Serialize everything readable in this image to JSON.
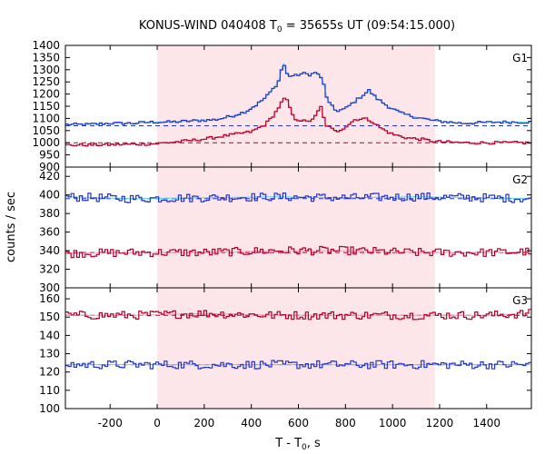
{
  "chart_data": {
    "type": "line",
    "title_main": "KONUS-WIND 040408 T",
    "title_sub": "0",
    "title_rest": " = 35655s UT (09:54:15.000)",
    "xlabel_main": "T - T",
    "xlabel_sub": "0",
    "xlabel_rest": ", s",
    "ylabel": "counts / sec",
    "xlim": [
      -390,
      1590
    ],
    "xticks": [
      -200,
      0,
      200,
      400,
      600,
      800,
      1000,
      1200,
      1400
    ],
    "shaded_interval": [
      0,
      1180
    ],
    "colors": {
      "blue": "#2535c8",
      "red": "#b3002a",
      "cyan": "#5fd3f0",
      "pink": "#f0a0c0",
      "shade": "#fde6ea"
    },
    "panels": [
      {
        "label": "G1",
        "ylim": [
          900,
          1400
        ],
        "yticks": [
          900,
          950,
          1000,
          1050,
          1100,
          1150,
          1200,
          1250,
          1300,
          1350,
          1400
        ],
        "series": [
          {
            "color": "blue",
            "background": 1070,
            "points": [
              [
                -390,
                1075
              ],
              [
                -300,
                1075
              ],
              [
                -200,
                1080
              ],
              [
                -100,
                1080
              ],
              [
                -20,
                1085
              ],
              [
                60,
                1085
              ],
              [
                150,
                1090
              ],
              [
                250,
                1095
              ],
              [
                320,
                1110
              ],
              [
                380,
                1130
              ],
              [
                420,
                1155
              ],
              [
                460,
                1185
              ],
              [
                500,
                1230
              ],
              [
                520,
                1260
              ],
              [
                535,
                1335
              ],
              [
                545,
                1300
              ],
              [
                555,
                1275
              ],
              [
                585,
                1275
              ],
              [
                620,
                1285
              ],
              [
                650,
                1280
              ],
              [
                680,
                1290
              ],
              [
                705,
                1250
              ],
              [
                725,
                1170
              ],
              [
                760,
                1130
              ],
              [
                800,
                1140
              ],
              [
                840,
                1170
              ],
              [
                880,
                1200
              ],
              [
                900,
                1215
              ],
              [
                930,
                1185
              ],
              [
                980,
                1150
              ],
              [
                1040,
                1120
              ],
              [
                1100,
                1105
              ],
              [
                1180,
                1090
              ],
              [
                1300,
                1080
              ],
              [
                1450,
                1085
              ],
              [
                1590,
                1085
              ]
            ]
          },
          {
            "color": "red",
            "background": 1000,
            "points": [
              [
                -390,
                990
              ],
              [
                -200,
                992
              ],
              [
                -20,
                995
              ],
              [
                100,
                1005
              ],
              [
                200,
                1015
              ],
              [
                300,
                1030
              ],
              [
                400,
                1045
              ],
              [
                460,
                1075
              ],
              [
                500,
                1120
              ],
              [
                525,
                1160
              ],
              [
                540,
                1180
              ],
              [
                555,
                1170
              ],
              [
                580,
                1100
              ],
              [
                640,
                1085
              ],
              [
                675,
                1110
              ],
              [
                695,
                1150
              ],
              [
                715,
                1075
              ],
              [
                760,
                1045
              ],
              [
                800,
                1065
              ],
              [
                840,
                1095
              ],
              [
                880,
                1100
              ],
              [
                910,
                1090
              ],
              [
                950,
                1060
              ],
              [
                1000,
                1035
              ],
              [
                1060,
                1020
              ],
              [
                1120,
                1015
              ],
              [
                1180,
                1005
              ],
              [
                1300,
                1000
              ],
              [
                1590,
                1000
              ]
            ]
          }
        ]
      },
      {
        "label": "G2",
        "ylim": [
          300,
          430
        ],
        "yticks": [
          300,
          320,
          340,
          360,
          380,
          400,
          420
        ],
        "series": [
          {
            "color": "blue",
            "background": 396,
            "points": [
              [
                -390,
                398
              ],
              [
                -100,
                396
              ],
              [
                200,
                397
              ],
              [
                500,
                398
              ],
              [
                800,
                397
              ],
              [
                1100,
                398
              ],
              [
                1400,
                397
              ],
              [
                1590,
                396
              ]
            ]
          },
          {
            "color": "red",
            "background": 338,
            "points": [
              [
                -390,
                337
              ],
              [
                -100,
                338
              ],
              [
                200,
                338
              ],
              [
                500,
                340
              ],
              [
                800,
                340
              ],
              [
                1100,
                338
              ],
              [
                1400,
                338
              ],
              [
                1590,
                339
              ]
            ]
          }
        ]
      },
      {
        "label": "G3",
        "ylim": [
          100,
          166
        ],
        "yticks": [
          100,
          110,
          120,
          130,
          140,
          150,
          160
        ],
        "series": [
          {
            "color": "red",
            "background": 151,
            "points": [
              [
                -390,
                151
              ],
              [
                -100,
                151
              ],
              [
                200,
                152
              ],
              [
                500,
                151
              ],
              [
                800,
                151
              ],
              [
                1100,
                151
              ],
              [
                1400,
                151
              ],
              [
                1590,
                152
              ]
            ]
          },
          {
            "color": "blue",
            "background": 124,
            "points": [
              [
                -390,
                124
              ],
              [
                -100,
                124
              ],
              [
                200,
                124
              ],
              [
                500,
                124
              ],
              [
                800,
                124
              ],
              [
                1100,
                124
              ],
              [
                1400,
                124
              ],
              [
                1590,
                124
              ]
            ]
          }
        ]
      }
    ]
  }
}
